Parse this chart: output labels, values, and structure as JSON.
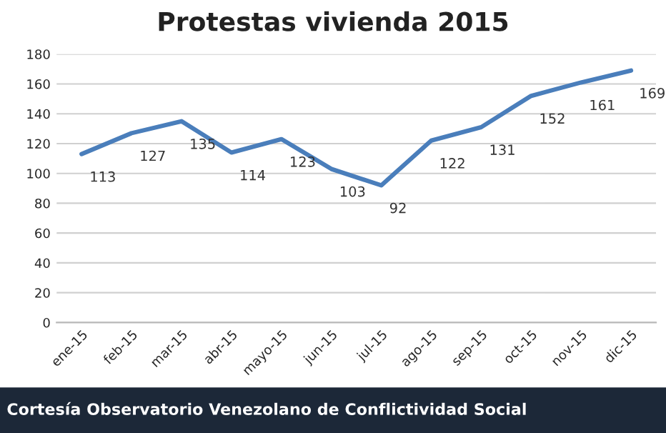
{
  "chart_data": {
    "type": "line",
    "title": "Protestas vivienda 2015",
    "categories": [
      "ene-15",
      "feb-15",
      "mar-15",
      "abr-15",
      "mayo-15",
      "jun-15",
      "jul-15",
      "ago-15",
      "sep-15",
      "oct-15",
      "nov-15",
      "dic-15"
    ],
    "series": [
      {
        "color": "#4a7ebb",
        "values": [
          113,
          127,
          135,
          114,
          123,
          103,
          92,
          122,
          131,
          152,
          161,
          169
        ]
      }
    ],
    "ylim": [
      0,
      180
    ],
    "yticks": [
      0,
      20,
      40,
      60,
      80,
      100,
      120,
      140,
      160,
      180
    ],
    "grid": "y",
    "data_labels": true,
    "marker": "none",
    "line_style": "solid",
    "legend": false,
    "annotations": [
      "Cortesía Observatorio Venezolano de Conflictividad Social"
    ]
  }
}
